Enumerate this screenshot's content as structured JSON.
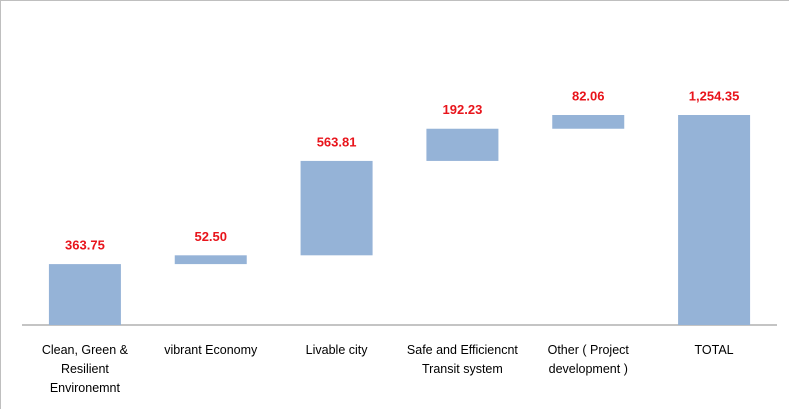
{
  "chart_data": {
    "type": "waterfall",
    "categories": [
      "Clean, Green & Resilient Environemnt",
      "vibrant Economy",
      "Livable city",
      "Safe and Efficiencnt Transit system",
      "Other ( Project development )",
      "TOTAL"
    ],
    "values": [
      363.75,
      52.5,
      563.81,
      192.23,
      82.06,
      1254.35
    ],
    "value_labels": [
      "363.75",
      "52.50",
      "563.81",
      "192.23",
      "82.06",
      "1,254.35"
    ],
    "total_index": 5,
    "color": "#95b3d7"
  }
}
